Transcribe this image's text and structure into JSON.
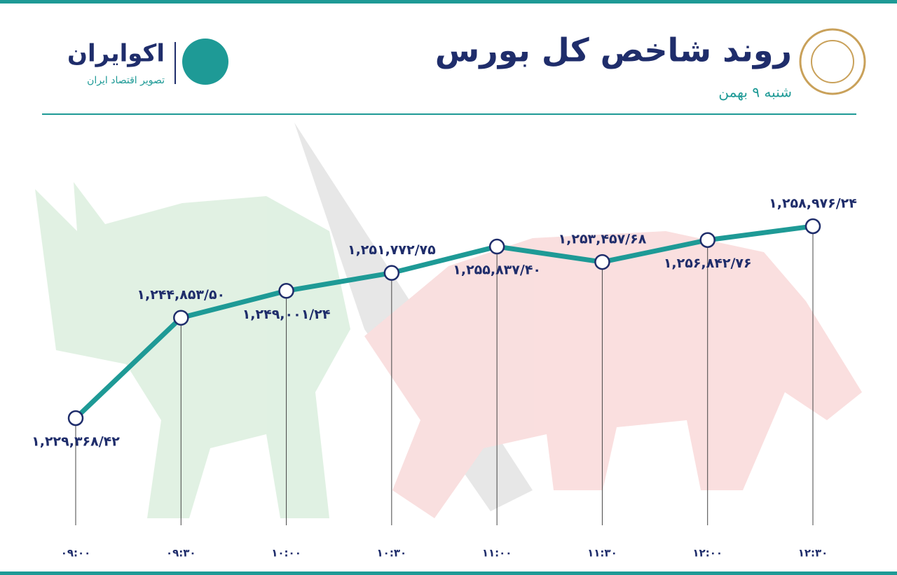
{
  "header": {
    "title": "روند شاخص کل بورس",
    "subtitle": "شنبه ۹ بهمن",
    "brand": "اکوایران",
    "brand_tagline": "تصویر اقتصاد ایران"
  },
  "chart_data": {
    "type": "line",
    "categories": [
      "۰۹:۰۰",
      "۰۹:۳۰",
      "۱۰:۰۰",
      "۱۰:۳۰",
      "۱۱:۰۰",
      "۱۱:۳۰",
      "۱۲:۰۰",
      "۱۲:۳۰"
    ],
    "series": [
      {
        "color": "#1e9a96",
        "values": [
          1229368.42,
          1244853.5,
          1249001.24,
          1251772.75,
          1255837.4,
          1253457.68,
          1256842.76,
          1258976.24
        ],
        "value_labels": [
          "۱,۲۲۹,۳۶۸/۴۲",
          "۱,۲۴۴,۸۵۳/۵۰",
          "۱,۲۴۹,۰۰۱/۲۴",
          "۱,۲۵۱,۷۷۲/۷۵",
          "۱,۲۵۵,۸۳۷/۴۰",
          "۱,۲۵۳,۴۵۷/۶۸",
          "۱,۲۵۶,۸۴۲/۷۶",
          "۱,۲۵۸,۹۷۶/۲۴"
        ]
      }
    ]
  }
}
